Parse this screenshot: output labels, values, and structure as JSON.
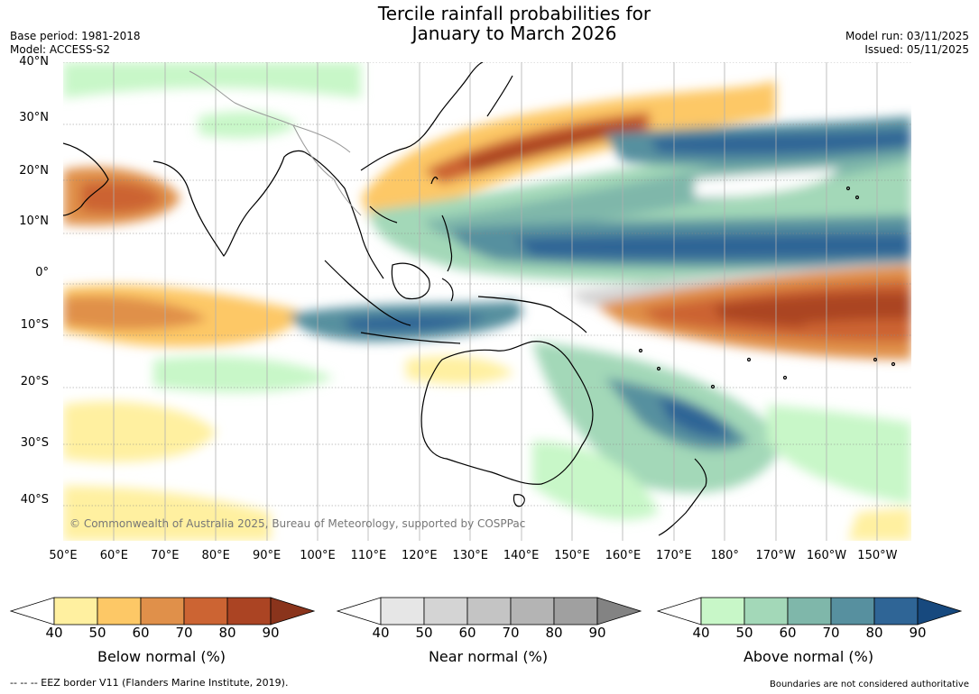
{
  "header": {
    "title_line1": "Tercile rainfall probabilities for",
    "title_line2": "January to March 2026",
    "base_period": "Base period: 1981-2018",
    "model": "Model: ACCESS-S2",
    "model_run": "Model run: 03/11/2025",
    "issued": "Issued: 05/11/2025"
  },
  "map": {
    "copyright": "© Commonwealth of Australia 2025, Bureau of Meteorology, supported by COSPPac",
    "lat_labels": [
      "40°N",
      "30°N",
      "20°N",
      "10°N",
      "0°",
      "10°S",
      "20°S",
      "30°S",
      "40°S"
    ],
    "lon_labels": [
      "50°E",
      "60°E",
      "70°E",
      "80°E",
      "90°E",
      "100°E",
      "110°E",
      "120°E",
      "130°E",
      "140°E",
      "150°E",
      "160°E",
      "170°E",
      "180°",
      "170°W",
      "160°W",
      "150°W"
    ],
    "regions": [
      {
        "name": "north-pacific-dry-band",
        "category": "below",
        "level": 70
      },
      {
        "name": "arabian-sea-dry",
        "category": "below",
        "level": 70
      },
      {
        "name": "equatorial-pacific-dry",
        "category": "below",
        "level": 80
      },
      {
        "name": "indian-ocean-dry",
        "category": "below",
        "level": 60
      },
      {
        "name": "western-pacific-wet",
        "category": "above",
        "level": 80
      },
      {
        "name": "maritime-continent-wet",
        "category": "above",
        "level": 70
      },
      {
        "name": "south-pacific-wet",
        "category": "above",
        "level": 70
      },
      {
        "name": "equatorial-pacific-near-normal",
        "category": "near",
        "level": 50
      }
    ]
  },
  "colorbars": [
    {
      "name": "below",
      "label": "Below normal (%)",
      "ticks": [
        "40",
        "50",
        "60",
        "70",
        "80",
        "90"
      ],
      "colors": [
        "#fff0a0",
        "#fdc866",
        "#e0904a",
        "#cc6433",
        "#ab4423"
      ],
      "extend_color": "#8a341c"
    },
    {
      "name": "near",
      "label": "Near normal (%)",
      "ticks": [
        "40",
        "50",
        "60",
        "70",
        "80",
        "90"
      ],
      "colors": [
        "#e6e6e6",
        "#d4d4d4",
        "#c4c4c4",
        "#b4b4b4",
        "#a0a0a0"
      ],
      "extend_color": "#838383"
    },
    {
      "name": "above",
      "label": "Above normal (%)",
      "ticks": [
        "40",
        "50",
        "60",
        "70",
        "80",
        "90"
      ],
      "colors": [
        "#c8f7c8",
        "#a3d8b8",
        "#7fb7aa",
        "#57909f",
        "#2f6596"
      ],
      "extend_color": "#17497e"
    }
  ],
  "footer": {
    "eez": "--  --  -- EEZ border V11 (Flanders Marine Institute, 2019).",
    "boundaries": "Boundaries are not considered authoritative"
  }
}
